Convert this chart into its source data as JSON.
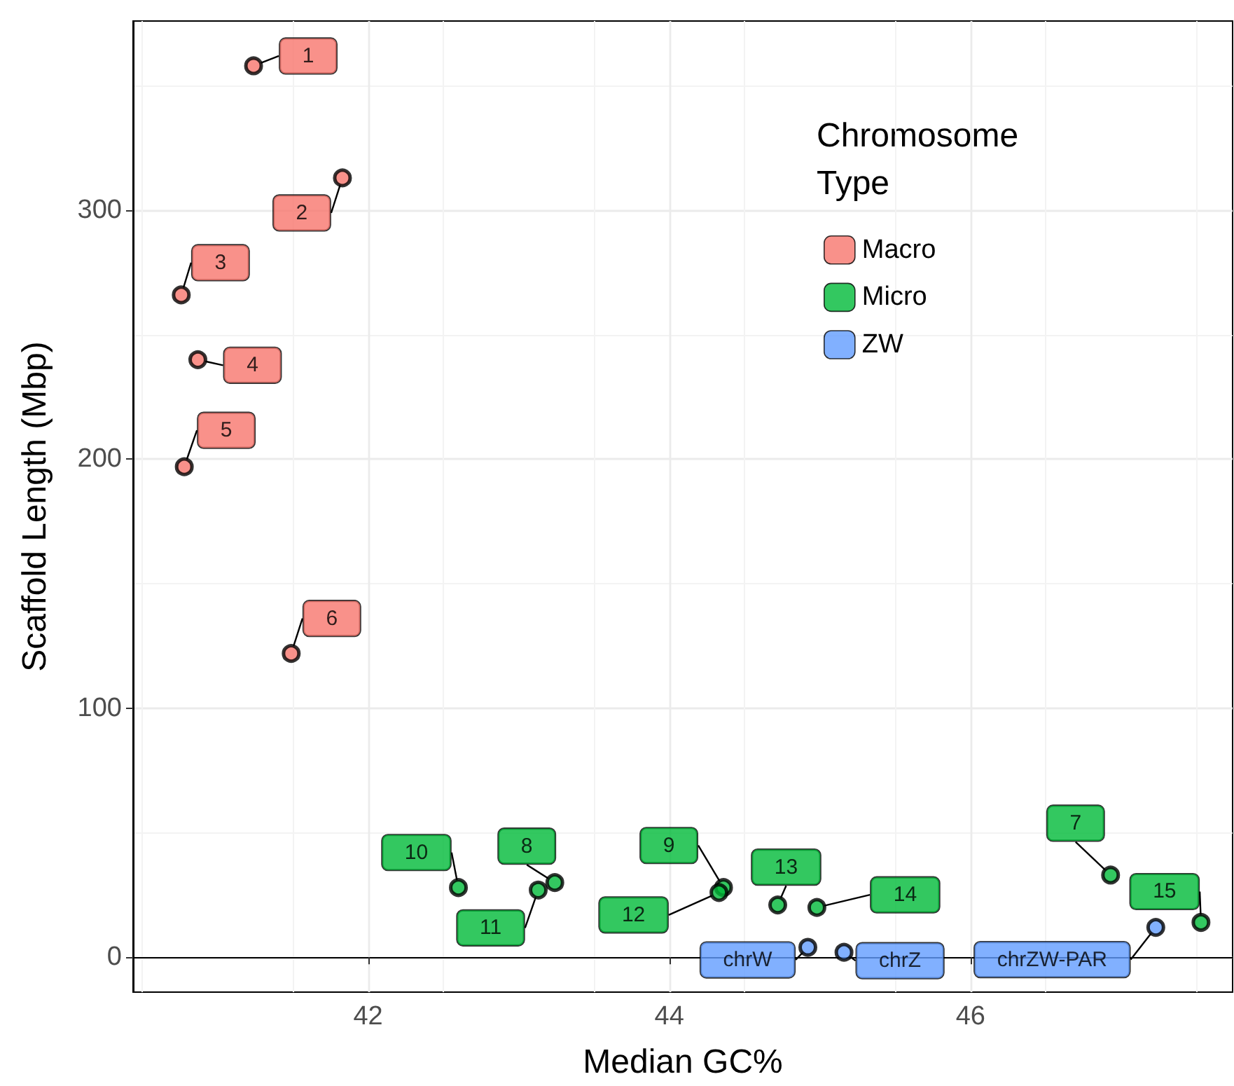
{
  "chart_data": {
    "type": "scatter",
    "xlabel": "Median GC%",
    "ylabel": "Scaffold Length (Mbp)",
    "legend_title": "Chromosome Type",
    "xlim": [
      40.44,
      47.74
    ],
    "xticks": [
      42,
      44,
      46
    ],
    "ylim": [
      -14,
      376
    ],
    "yticks": [
      0,
      100,
      200,
      300
    ],
    "grid": true,
    "legend": "top right",
    "marker": "circle",
    "series": [
      {
        "name": "Macro",
        "color": "#f8766d",
        "x": [
          41.24,
          41.83,
          40.76,
          40.87,
          40.78,
          41.49
        ],
        "values": [
          358,
          313,
          266,
          240,
          197,
          122
        ]
      },
      {
        "name": "Micro",
        "color": "#00ba38",
        "x": [
          46.93,
          43.24,
          44.36,
          42.6,
          43.13,
          44.33,
          44.72,
          44.98,
          47.53
        ],
        "values": [
          33,
          30,
          28,
          28,
          27,
          26,
          21,
          20,
          14
        ]
      },
      {
        "name": "ZW",
        "color": "#619cff",
        "x": [
          44.92,
          45.16,
          47.23
        ],
        "values": [
          4,
          2,
          12
        ]
      }
    ],
    "annotations": [
      {
        "text": "1",
        "x": 41.24,
        "y": 358
      },
      {
        "text": "2",
        "x": 41.83,
        "y": 313
      },
      {
        "text": "3",
        "x": 40.76,
        "y": 266
      },
      {
        "text": "4",
        "x": 40.87,
        "y": 240
      },
      {
        "text": "5",
        "x": 40.78,
        "y": 197
      },
      {
        "text": "6",
        "x": 41.49,
        "y": 122
      },
      {
        "text": "7",
        "x": 46.93,
        "y": 33
      },
      {
        "text": "8",
        "x": 43.24,
        "y": 30
      },
      {
        "text": "9",
        "x": 44.36,
        "y": 28
      },
      {
        "text": "10",
        "x": 42.6,
        "y": 28
      },
      {
        "text": "11",
        "x": 43.13,
        "y": 27
      },
      {
        "text": "12",
        "x": 44.33,
        "y": 26
      },
      {
        "text": "13",
        "x": 44.72,
        "y": 21
      },
      {
        "text": "14",
        "x": 44.98,
        "y": 20
      },
      {
        "text": "15",
        "x": 47.53,
        "y": 14
      },
      {
        "text": "chrW",
        "x": 44.92,
        "y": 4
      },
      {
        "text": "chrZ",
        "x": 45.16,
        "y": 2
      },
      {
        "text": "chrZW-PAR",
        "x": 47.23,
        "y": 12
      }
    ]
  }
}
